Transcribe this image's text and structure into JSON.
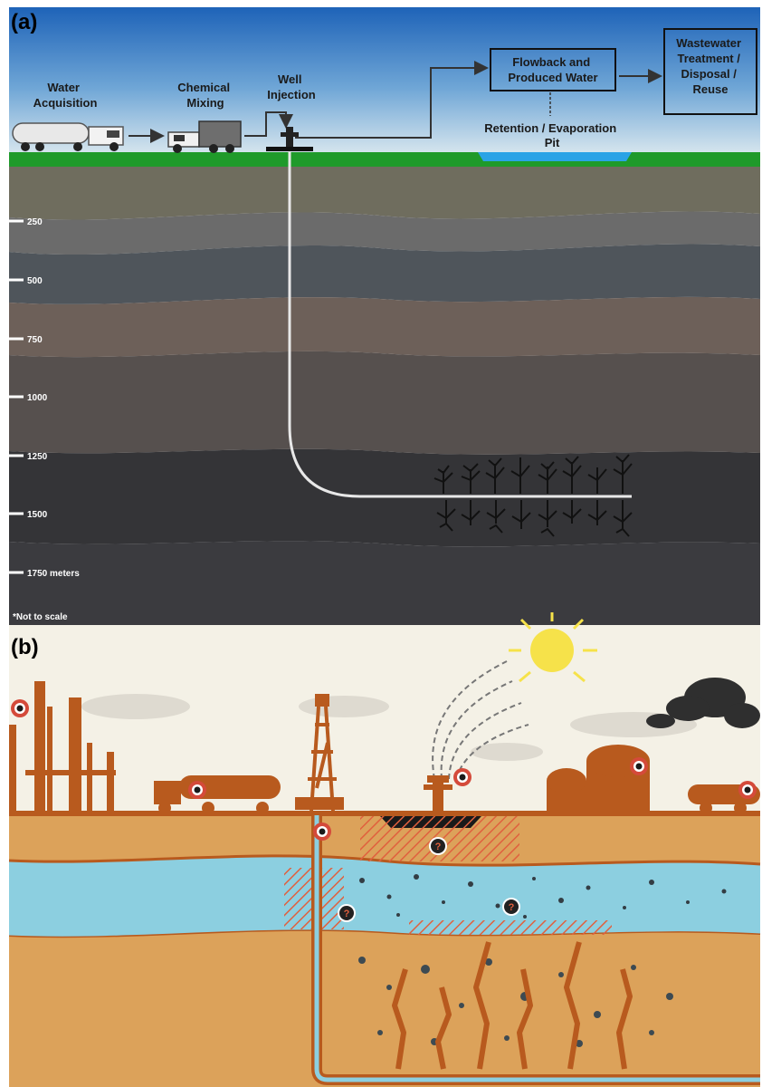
{
  "panel_a": {
    "tag": "(a)",
    "steps": {
      "water_acquisition": [
        "Water",
        "Acquisition"
      ],
      "chemical_mixing": [
        "Chemical",
        "Mixing"
      ],
      "well_injection": [
        "Well",
        "Injection"
      ],
      "flowback": [
        "Flowback and",
        "Produced Water"
      ],
      "wastewater": [
        "Wastewater",
        "Treatment /",
        "Disposal /",
        "Reuse"
      ],
      "retention": [
        "Retention / Evaporation",
        "Pit"
      ]
    },
    "depths": [
      "250",
      "500",
      "750",
      "1000",
      "1250",
      "1500",
      "1750 meters"
    ],
    "note": "*Not to scale",
    "colors": {
      "sky_top": "#1e63b8",
      "sky_bottom": "#cfe0ea",
      "ground": "#1f9a2a",
      "pit": "#2aa3e6"
    }
  },
  "panel_b": {
    "tag": "(b)",
    "question_mark": "?",
    "colors": {
      "sky": "#f4f1e6",
      "structures": "#b85a1e",
      "soil": "#dca25a",
      "aquifer": "#8ccfe0",
      "hatch": "#e06a4a"
    }
  }
}
